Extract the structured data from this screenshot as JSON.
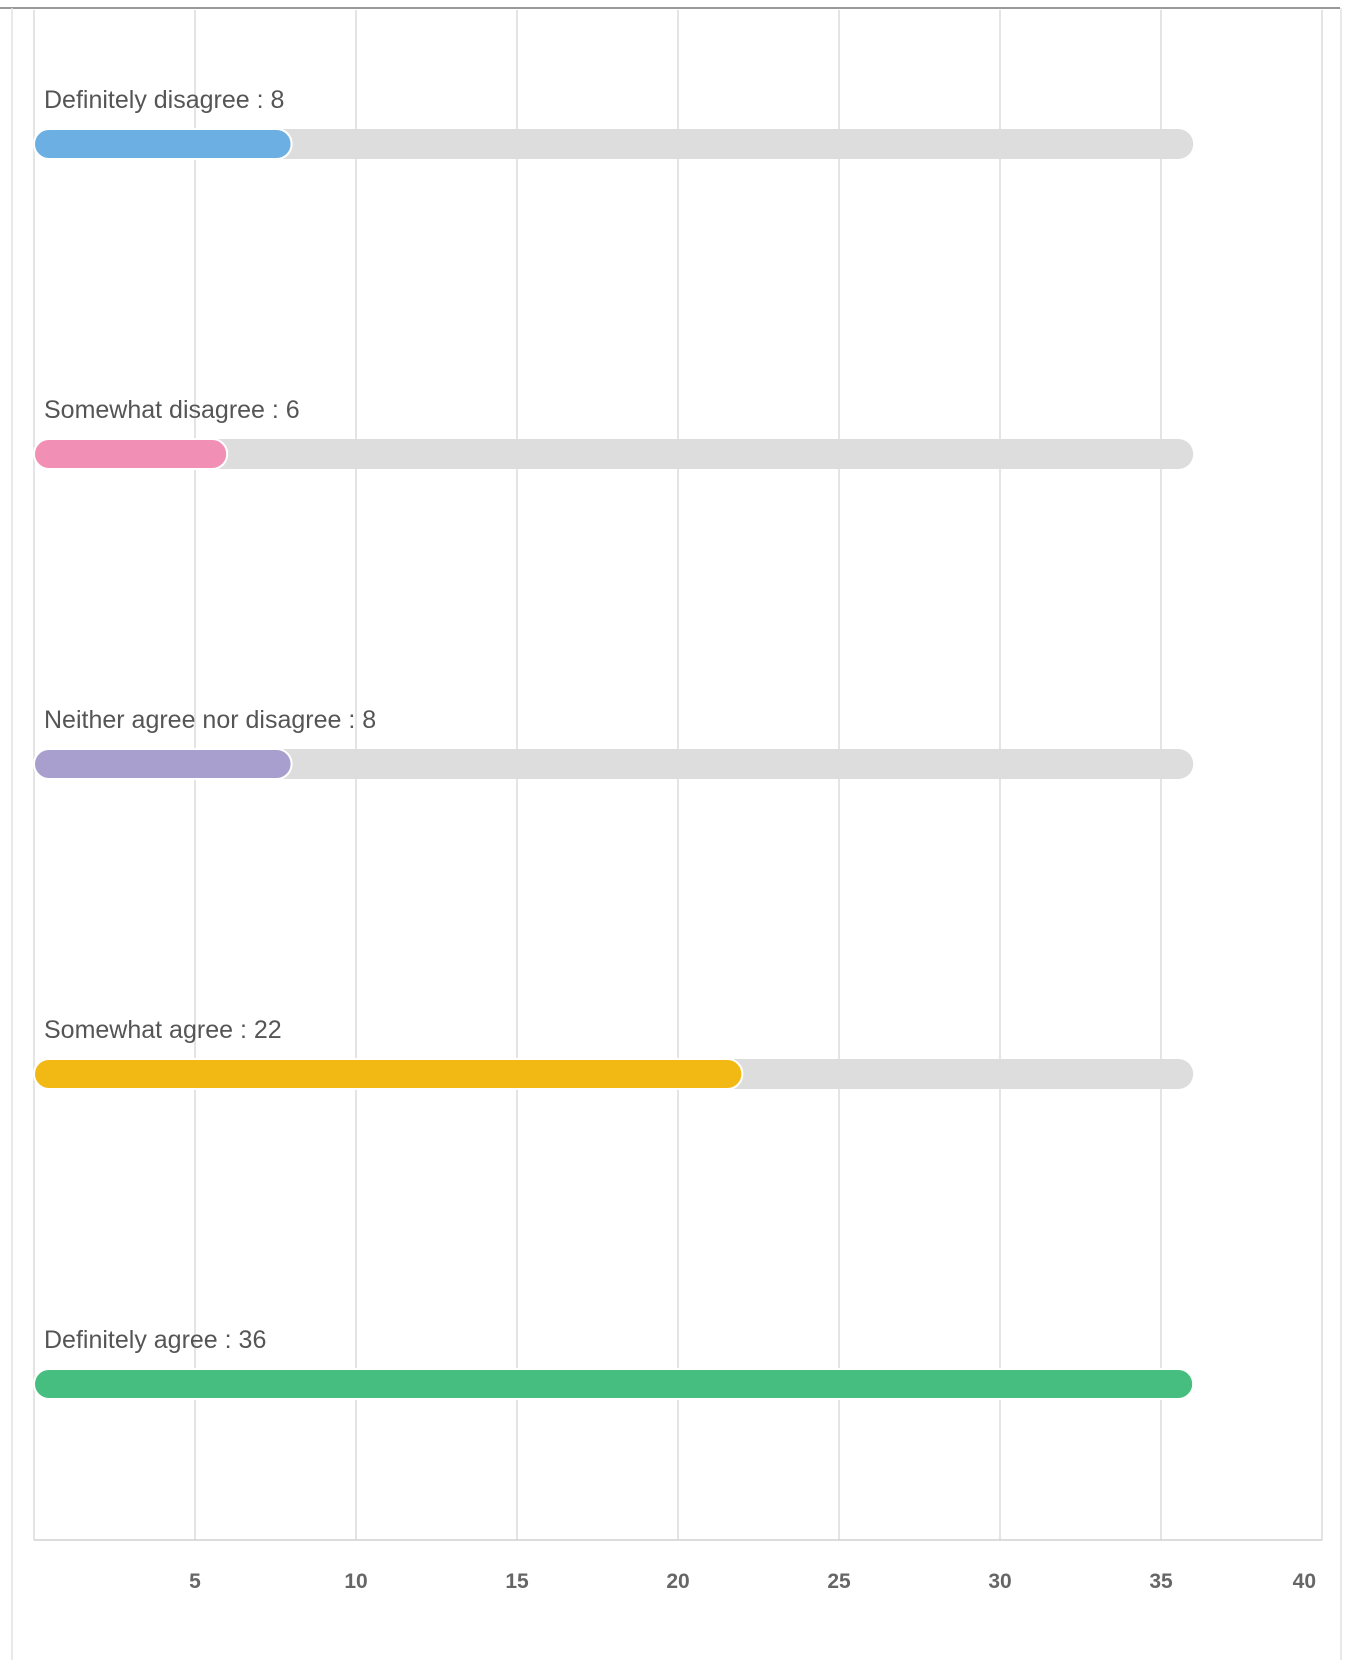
{
  "chart_data": {
    "type": "bar",
    "orientation": "horizontal",
    "categories": [
      "Definitely disagree",
      "Somewhat disagree",
      "Neither agree nor disagree",
      "Somewhat agree",
      "Definitely agree"
    ],
    "labels": [
      "Definitely disagree : 8",
      "Somewhat disagree : 6",
      "Neither agree nor disagree : 8",
      "Somewhat agree : 22",
      "Definitely agree : 36"
    ],
    "values": [
      8,
      6,
      8,
      22,
      36
    ],
    "track_max": 36,
    "colors": [
      "#6cb0e3",
      "#f28fb5",
      "#a99fcf",
      "#f2b915",
      "#45be7f"
    ],
    "track_color": "#dddddd",
    "xlim": [
      0,
      40
    ],
    "xticks": [
      5,
      10,
      15,
      20,
      25,
      30,
      35,
      40
    ],
    "xtick_labels": [
      "5",
      "10",
      "15",
      "20",
      "25",
      "30",
      "35",
      "40"
    ],
    "grid": true,
    "legend": "none",
    "title": "",
    "xlabel": "",
    "ylabel": ""
  }
}
